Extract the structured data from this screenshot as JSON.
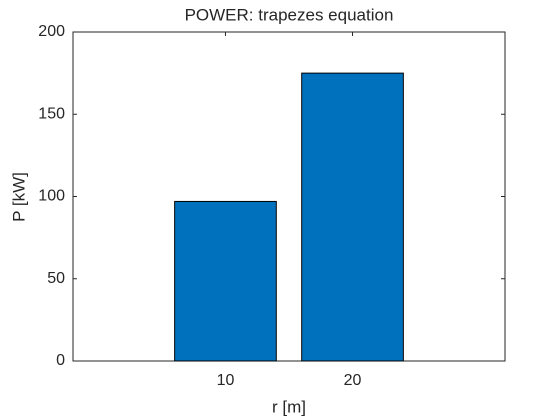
{
  "chart_data": {
    "type": "bar",
    "title": "POWER: trapezes equation",
    "xlabel": "r [m]",
    "ylabel": "P [kW]",
    "x": [
      10,
      20
    ],
    "values": [
      97,
      175
    ],
    "color": "#0072bd",
    "xlim": [
      -2,
      32
    ],
    "xticks": [
      10,
      20
    ],
    "ylim": [
      0,
      200
    ],
    "yticks": [
      0,
      50,
      100,
      150,
      200
    ],
    "grid": false
  }
}
